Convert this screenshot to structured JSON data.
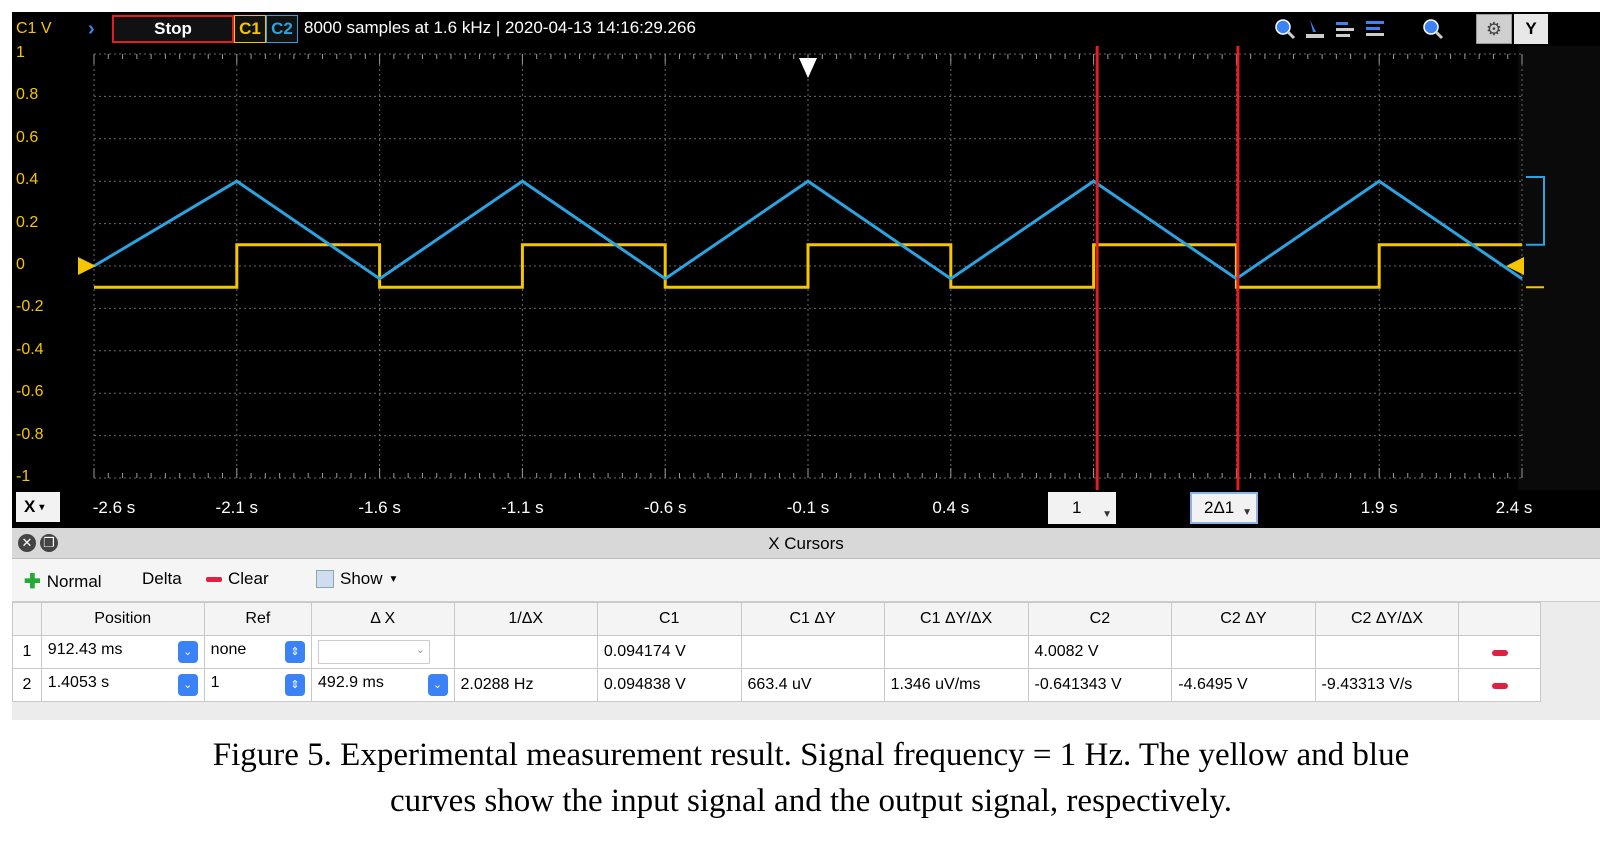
{
  "toolbar": {
    "axis_label": "C1 V",
    "stop_label": "Stop",
    "ch1_label": "C1",
    "ch2_label": "C2",
    "acquisition_info": "8000 samples at 1.6 kHz | 2020-04-13 14:16:29.266",
    "y_button_label": "Y"
  },
  "colors": {
    "ch1": "#f5c500",
    "ch2": "#2aa3e0",
    "cursor": "#e02020",
    "background": "#000000"
  },
  "y_axis": {
    "ticks": [
      "1",
      "0.8",
      "0.6",
      "0.4",
      "0.2",
      "0",
      "-0.2",
      "-0.4",
      "-0.6",
      "-0.8",
      "-1"
    ]
  },
  "x_axis": {
    "label": "X",
    "ticks": [
      "-2.6 s",
      "-2.1 s",
      "-1.6 s",
      "-1.1 s",
      "-0.6 s",
      "-0.1 s",
      "0.4 s",
      "1.9 s",
      "2.4 s"
    ]
  },
  "cursors": {
    "c1_label": "1",
    "c2_label": "2Δ1",
    "c1_time_s": 0.91243,
    "c2_time_s": 1.4053
  },
  "chart_data": {
    "type": "line",
    "xlim": [
      -2.6,
      2.4
    ],
    "ylim": [
      -1,
      1
    ],
    "grid": true,
    "series": [
      {
        "name": "C1",
        "x": [
          -2.6,
          -2.1,
          -2.1,
          -1.6,
          -1.6,
          -1.1,
          -1.1,
          -0.6,
          -0.6,
          -0.1,
          -0.1,
          0.4,
          0.4,
          0.9,
          0.9,
          1.4,
          1.4,
          1.9,
          1.9,
          2.4
        ],
        "y": [
          -0.1,
          -0.1,
          0.1,
          0.1,
          -0.1,
          -0.1,
          0.1,
          0.1,
          -0.1,
          -0.1,
          0.1,
          0.1,
          -0.1,
          -0.1,
          0.1,
          0.1,
          -0.1,
          -0.1,
          0.1,
          0.1
        ]
      },
      {
        "name": "C2",
        "x": [
          -2.6,
          -2.1,
          -1.6,
          -1.1,
          -0.6,
          -0.1,
          0.4,
          0.9,
          1.4,
          1.9,
          2.4
        ],
        "y": [
          0.0,
          0.4,
          -0.06,
          0.4,
          -0.06,
          0.4,
          -0.06,
          0.4,
          -0.06,
          0.4,
          -0.06
        ]
      }
    ]
  },
  "panel": {
    "title": "X Cursors",
    "normal_label": "Normal",
    "delta_label": "Delta",
    "clear_label": "Clear",
    "show_label": "Show",
    "columns": [
      "Position",
      "Ref",
      "Δ X",
      "1/ΔX",
      "C1",
      "C1 ΔY",
      "C1 ΔY/ΔX",
      "C2",
      "C2 ΔY",
      "C2 ΔY/ΔX"
    ],
    "rows": [
      {
        "num": "1",
        "position": "912.43 ms",
        "ref": "none",
        "dx": "",
        "inv_dx": "",
        "c1": "0.094174 V",
        "c1_dy": "",
        "c1_dydx": "",
        "c2": "4.0082 V",
        "c2_dy": "",
        "c2_dydx": ""
      },
      {
        "num": "2",
        "position": "1.4053 s",
        "ref": "1",
        "dx": "492.9 ms",
        "inv_dx": "2.0288 Hz",
        "c1": "0.094838 V",
        "c1_dy": "663.4 uV",
        "c1_dydx": "1.346 uV/ms",
        "c2": "-0.641343 V",
        "c2_dy": "-4.6495 V",
        "c2_dydx": "-9.43313 V/s"
      }
    ]
  },
  "caption": {
    "line1": "Figure 5. Experimental measurement result. Signal frequency = 1 Hz. The yellow and blue",
    "line2": "curves show the input signal and the output signal, respectively."
  }
}
